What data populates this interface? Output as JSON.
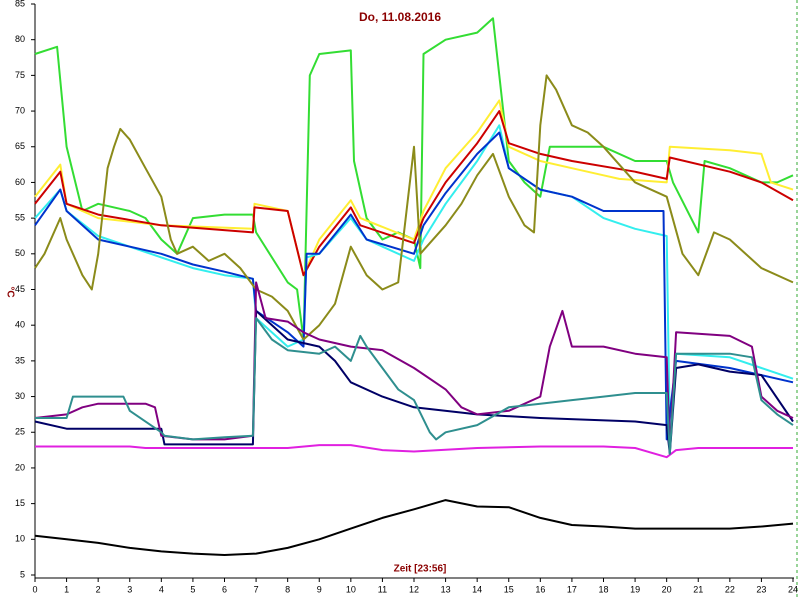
{
  "chart_data": {
    "type": "line",
    "title": "Do, 11.08.2016",
    "y_label": "°C",
    "x_label": "Zeit [23:56]",
    "xlim": [
      0,
      24
    ],
    "xticks": [
      0,
      1,
      2,
      3,
      4,
      5,
      6,
      7,
      8,
      9,
      10,
      11,
      12,
      13,
      14,
      15,
      16,
      17,
      18,
      19,
      20,
      21,
      22,
      23,
      24
    ],
    "ylim": [
      5,
      85
    ],
    "yticks": [
      5,
      10,
      15,
      20,
      25,
      30,
      35,
      40,
      45,
      50,
      55,
      60,
      65,
      70,
      75,
      80,
      85
    ],
    "series": [
      {
        "color": "#000000",
        "x": [
          0,
          1,
          2,
          3,
          4,
          5,
          6,
          7,
          8,
          9,
          10,
          11,
          12,
          13,
          14,
          15,
          16,
          17,
          18,
          19,
          20,
          21,
          22,
          23,
          24
        ],
        "values": [
          10.5,
          10,
          9.5,
          8.8,
          8.3,
          8,
          7.8,
          8,
          8.8,
          10,
          11.5,
          13,
          14.2,
          15.5,
          14.6,
          14.5,
          13,
          12,
          11.8,
          11.5,
          11.5,
          11.5,
          11.5,
          11.8,
          12.2
        ]
      },
      {
        "color": "#e020e0",
        "x": [
          0,
          3,
          3.5,
          4,
          8,
          9,
          10,
          11,
          12,
          14,
          16,
          18,
          19,
          20,
          20.3,
          21,
          24
        ],
        "values": [
          23,
          23,
          22.8,
          22.8,
          22.8,
          23.2,
          23.2,
          22.5,
          22.3,
          22.8,
          23,
          23,
          22.8,
          21.5,
          22.5,
          22.8,
          22.8
        ]
      },
      {
        "color": "#33dd33",
        "x": [
          0,
          0.7,
          1,
          1.5,
          2,
          3,
          3.5,
          4,
          4.5,
          5,
          6,
          6.9,
          7,
          8,
          8.3,
          8.5,
          8.7,
          9,
          10,
          10.1,
          10.5,
          11,
          11.5,
          12,
          12.2,
          12.3,
          13,
          14,
          14.5,
          14.7,
          15,
          15.5,
          16,
          16.3,
          17,
          18,
          19,
          20,
          20.2,
          21,
          21.2,
          22,
          23,
          23.5,
          24
        ],
        "values": [
          78,
          79,
          65,
          56,
          57,
          56,
          55,
          52,
          50,
          55,
          55.5,
          55.5,
          53,
          46,
          45,
          38,
          75,
          78,
          78.5,
          63,
          55,
          52,
          53,
          52,
          48,
          78,
          80,
          81,
          83,
          75,
          63,
          60,
          58,
          65,
          65,
          65,
          63,
          63,
          60,
          53,
          63,
          62,
          60,
          60,
          61
        ]
      },
      {
        "color": "#ffee33",
        "x": [
          0,
          0.8,
          1,
          2,
          4,
          6.9,
          6.95,
          8,
          8.5,
          9,
          10,
          10.3,
          12,
          12.3,
          13,
          14,
          14.7,
          15,
          16,
          17,
          18,
          18.5,
          20,
          20.1,
          22,
          23,
          23.3,
          24
        ],
        "values": [
          58,
          62.5,
          57,
          55,
          54,
          53.5,
          57,
          56,
          47,
          52,
          57.5,
          55,
          52,
          56,
          62,
          67,
          71.5,
          65,
          63,
          62,
          61,
          60.5,
          60,
          65,
          64.5,
          64,
          60,
          59
        ]
      },
      {
        "color": "#cc0000",
        "x": [
          0,
          0.8,
          1,
          2,
          4,
          6.9,
          6.95,
          8,
          8.5,
          9,
          10,
          10.3,
          12,
          12.3,
          13,
          14,
          14.7,
          15,
          16,
          17,
          19,
          20,
          20.1,
          22,
          23,
          24
        ],
        "values": [
          57,
          61.5,
          57,
          55.5,
          54,
          53,
          56.5,
          56,
          47,
          51,
          56.5,
          54,
          51.5,
          55,
          60,
          65.5,
          70,
          65.5,
          64,
          63,
          61.5,
          60.5,
          63.5,
          61.5,
          60,
          57.5
        ]
      },
      {
        "color": "#33eeee",
        "x": [
          0,
          0.8,
          1,
          2,
          4,
          5,
          6,
          6.9,
          7,
          8,
          8.5,
          8.6,
          9,
          10,
          10.5,
          12,
          12.3,
          13,
          14,
          14.7,
          15,
          16,
          17,
          18,
          19,
          20,
          20.1,
          20.3,
          22,
          23,
          24
        ],
        "values": [
          55,
          59,
          56,
          52.5,
          49.5,
          48,
          47,
          46.5,
          41,
          37,
          38,
          49.5,
          50,
          55,
          52,
          49,
          52,
          57,
          63,
          68,
          62,
          59,
          58,
          55,
          53.5,
          52.5,
          25,
          36,
          35.5,
          34,
          32.5
        ]
      },
      {
        "color": "#0033cc",
        "x": [
          0,
          0.8,
          1,
          2,
          4,
          5,
          6,
          6.9,
          7,
          8,
          8.5,
          8.6,
          9,
          10,
          10.5,
          12,
          12.3,
          13,
          14,
          14.7,
          15,
          16,
          17,
          18,
          19,
          19.9,
          20,
          20.3,
          22,
          23,
          24
        ],
        "values": [
          54,
          59,
          56,
          52,
          50,
          48.5,
          47.5,
          46.5,
          42,
          39,
          37,
          50,
          50,
          55.5,
          52,
          50,
          54,
          58.5,
          64,
          67,
          62,
          59,
          58,
          56,
          56,
          56,
          24,
          35,
          34,
          33,
          32
        ]
      },
      {
        "color": "#000066",
        "x": [
          0,
          1,
          4,
          4.1,
          6.9,
          7,
          8,
          9,
          9.5,
          10,
          11,
          12,
          14,
          16,
          19,
          20,
          20.1,
          20.3,
          21,
          22,
          23,
          24
        ],
        "values": [
          26.5,
          25.5,
          25.5,
          23.3,
          23.3,
          42,
          38,
          37,
          35,
          32,
          30,
          28.5,
          27.5,
          27,
          26.5,
          26,
          22,
          34,
          34.5,
          33.5,
          33,
          26.5
        ]
      },
      {
        "color": "#8b8b1a",
        "x": [
          0,
          0.3,
          0.8,
          1,
          1.5,
          1.8,
          2,
          2.3,
          2.5,
          2.7,
          3,
          3.5,
          4,
          4.3,
          4.5,
          5,
          5.5,
          6,
          6.5,
          7,
          7.5,
          8,
          8.5,
          9,
          9.5,
          10,
          10.5,
          11,
          11.5,
          12,
          12.2,
          13,
          13.5,
          14,
          14.5,
          15,
          15.5,
          15.8,
          16,
          16.2,
          16.5,
          17,
          17.5,
          18,
          19,
          20,
          20.5,
          21,
          21.5,
          22,
          23,
          24
        ],
        "values": [
          48,
          50,
          55,
          52,
          47,
          45,
          50,
          62,
          65,
          67.5,
          66,
          62,
          58,
          52,
          50,
          51,
          49,
          50,
          48,
          45,
          44,
          42,
          38,
          40,
          43,
          51,
          47,
          45,
          46,
          65,
          50,
          54,
          57,
          61,
          64,
          58,
          54,
          53,
          68,
          75,
          73,
          68,
          67,
          65,
          60,
          58,
          50,
          47,
          53,
          52,
          48,
          46
        ]
      },
      {
        "color": "#800080",
        "x": [
          0,
          1,
          1.5,
          2,
          3,
          3.5,
          3.8,
          4,
          5,
          6,
          6.9,
          7,
          7.3,
          8,
          8.5,
          9,
          10,
          11,
          12,
          13,
          13.5,
          14,
          15,
          16,
          16.3,
          16.7,
          17,
          18,
          19,
          20,
          20.1,
          20.3,
          22,
          22.7,
          23,
          23.5,
          24
        ],
        "values": [
          27,
          27.5,
          28.5,
          29,
          29,
          29,
          28.5,
          24.5,
          24,
          24,
          24.5,
          46,
          41,
          40.5,
          39,
          38,
          37,
          36.5,
          34,
          31,
          28.5,
          27.5,
          28,
          30,
          37,
          42,
          37,
          37,
          36,
          35.5,
          22.5,
          39,
          38.5,
          37,
          30,
          28,
          27
        ]
      },
      {
        "color": "#2f8f8f",
        "x": [
          0,
          1,
          1.2,
          2,
          2.8,
          3,
          4,
          4.1,
          5,
          6,
          6.9,
          7,
          7.5,
          8,
          9,
          9.5,
          10,
          10.3,
          10.5,
          11,
          11.5,
          12,
          12.5,
          12.7,
          13,
          14,
          15,
          16,
          17,
          18,
          19,
          20,
          20.1,
          20.3,
          22,
          22.7,
          23,
          23.5,
          24
        ],
        "values": [
          27,
          27,
          30,
          30,
          30,
          28,
          25,
          24.5,
          24,
          24.3,
          24.5,
          41,
          38,
          36.5,
          36,
          37,
          35,
          38.5,
          37,
          34,
          31,
          29.5,
          25,
          24,
          25,
          26,
          28.5,
          29,
          29.5,
          30,
          30.5,
          30.5,
          22,
          36,
          36,
          35.5,
          29.5,
          27.5,
          26
        ]
      }
    ]
  }
}
